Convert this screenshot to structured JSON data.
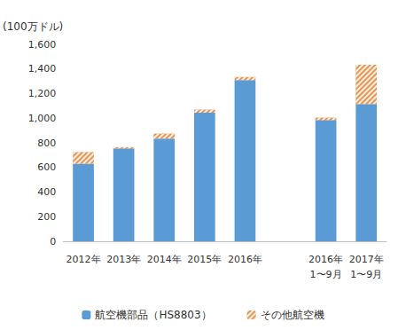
{
  "chart_data": {
    "type": "bar",
    "ylabel": "(100万ドル)",
    "categories": [
      "2012年",
      "2013年",
      "2014年",
      "2015年",
      "2016年",
      null,
      "2016年\n1〜9月",
      "2017年\n1〜9月"
    ],
    "series": [
      {
        "name": "航空機部品（HS8803）",
        "color": "#5b9bd5",
        "values": [
          630,
          755,
          835,
          1045,
          1310,
          null,
          985,
          1115
        ]
      },
      {
        "name": "その他航空機",
        "color": "#e8954f",
        "values": [
          95,
          10,
          40,
          25,
          25,
          null,
          20,
          320
        ]
      }
    ],
    "stacked": true,
    "ylim": [
      0,
      1600
    ],
    "yticks": [
      0,
      200,
      400,
      600,
      800,
      {
        "value": 1000,
        "label": "1,000"
      },
      {
        "value": 1200,
        "label": "1,200"
      },
      {
        "value": 1400,
        "label": "1,400"
      },
      {
        "value": 1600,
        "label": "1,600"
      }
    ],
    "grid": false,
    "legend": "bottom"
  }
}
